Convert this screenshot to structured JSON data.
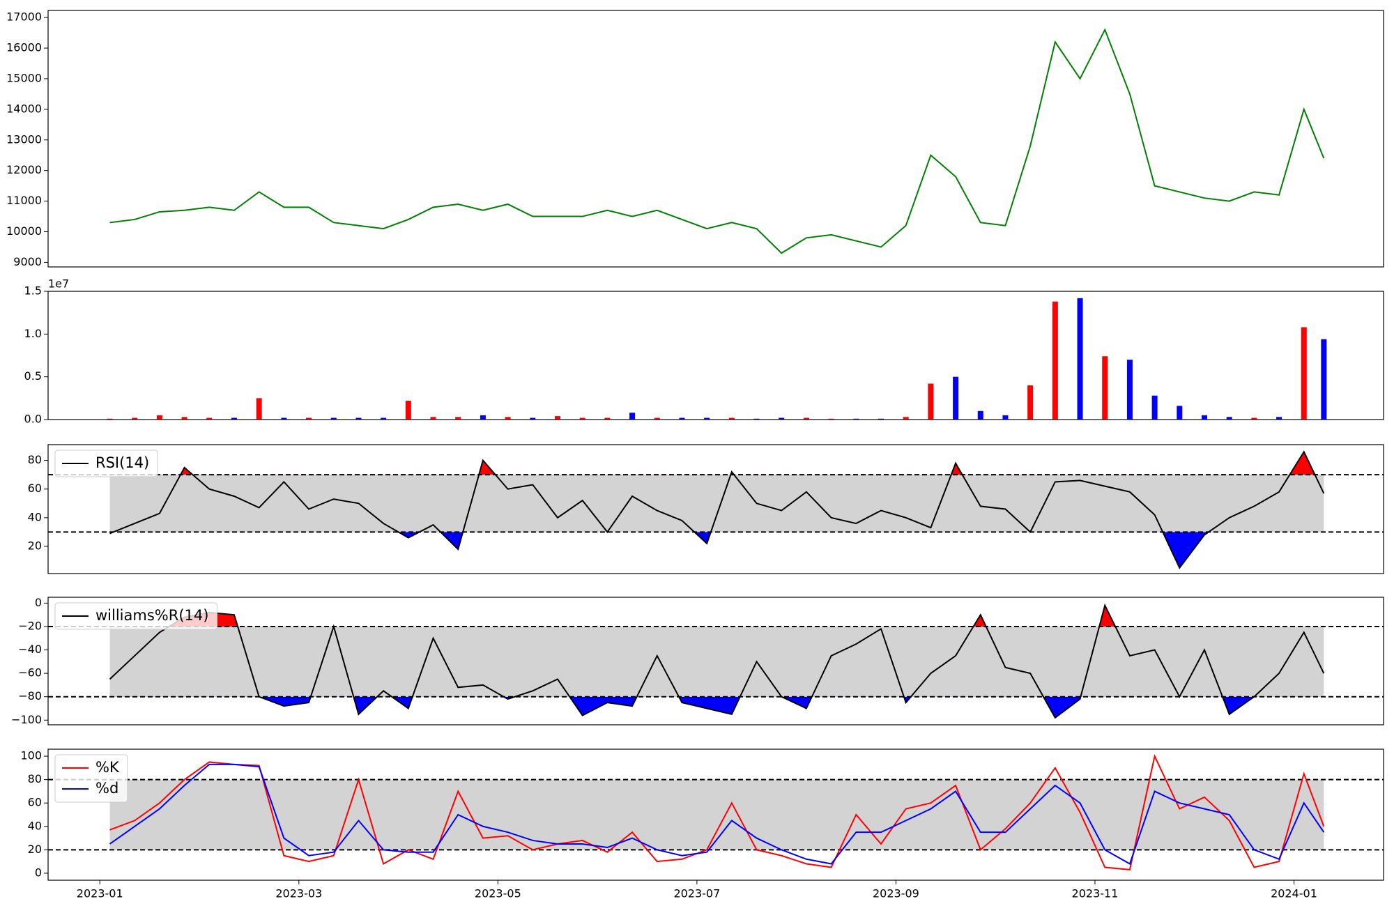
{
  "chart_data": [
    {
      "type": "line",
      "color": "#008000",
      "x": [
        0.1,
        0.35,
        0.6,
        0.85,
        1.1,
        1.35,
        1.6,
        1.85,
        2.1,
        2.35,
        2.6,
        2.85,
        3.1,
        3.35,
        3.6,
        3.85,
        4.1,
        4.35,
        4.6,
        4.85,
        5.1,
        5.35,
        5.6,
        5.85,
        6.1,
        6.35,
        6.6,
        6.85,
        7.1,
        7.35,
        7.6,
        7.85,
        8.1,
        8.35,
        8.6,
        8.85,
        9.1,
        9.35,
        9.6,
        9.85,
        10.1,
        10.35,
        10.6,
        10.85,
        11.1,
        11.35,
        11.6,
        11.85,
        12.1,
        12.3
      ],
      "values": [
        10300,
        10400,
        10650,
        10700,
        10800,
        10700,
        11300,
        10800,
        10800,
        10300,
        10200,
        10100,
        10400,
        10800,
        10900,
        10700,
        10900,
        10500,
        10500,
        10500,
        10700,
        10500,
        10700,
        10400,
        10100,
        10300,
        10100,
        9300,
        9800,
        9900,
        9700,
        9500,
        10200,
        12500,
        11800,
        10300,
        10200,
        12800,
        16200,
        15000,
        16600,
        14500,
        11500,
        11300,
        11100,
        11000,
        11300,
        11200,
        14000,
        12400
      ],
      "xlim": [
        -0.52,
        12.9
      ],
      "ylim": [
        8850,
        17230
      ],
      "yticks": [
        9000,
        10000,
        11000,
        12000,
        13000,
        14000,
        15000,
        16000,
        17000
      ]
    },
    {
      "type": "bar",
      "up_color": "#ff0000",
      "down_color": "#0000ff",
      "offset_text": "1e7",
      "x": [
        0.1,
        0.35,
        0.6,
        0.85,
        1.1,
        1.35,
        1.6,
        1.85,
        2.1,
        2.35,
        2.6,
        2.85,
        3.1,
        3.35,
        3.6,
        3.85,
        4.1,
        4.35,
        4.6,
        4.85,
        5.1,
        5.35,
        5.6,
        5.85,
        6.1,
        6.35,
        6.6,
        6.85,
        7.1,
        7.35,
        7.6,
        7.85,
        8.1,
        8.35,
        8.6,
        8.85,
        9.1,
        9.35,
        9.6,
        9.85,
        10.1,
        10.35,
        10.6,
        10.85,
        11.1,
        11.35,
        11.6,
        11.85,
        12.1,
        12.3
      ],
      "values": [
        0.01,
        0.02,
        0.05,
        0.03,
        0.02,
        0.02,
        0.25,
        0.02,
        0.02,
        0.02,
        0.02,
        0.02,
        0.22,
        0.03,
        0.03,
        0.05,
        0.03,
        0.02,
        0.04,
        0.02,
        0.02,
        0.08,
        0.02,
        0.02,
        0.02,
        0.02,
        0.01,
        0.02,
        0.02,
        0.01,
        0.01,
        0.01,
        0.03,
        0.42,
        0.5,
        0.1,
        0.05,
        0.4,
        1.38,
        1.42,
        0.74,
        0.7,
        0.28,
        0.16,
        0.05,
        0.03,
        0.02,
        0.03,
        1.08,
        0.94
      ],
      "xlim": [
        -0.52,
        12.9
      ],
      "ylim": [
        0,
        1.5
      ],
      "yticks": [
        {
          "value": 0,
          "label": "0.0"
        },
        0.5,
        {
          "value": 1,
          "label": "1.0"
        },
        1.5
      ]
    },
    {
      "type": "oscillator",
      "upper": 70,
      "lower": 30,
      "band_color": "#d3d3d3",
      "upper_fill": "#ff0000",
      "lower_fill": "#0000ff",
      "legend": "upper left",
      "x": [
        0.1,
        0.35,
        0.6,
        0.85,
        1.1,
        1.35,
        1.6,
        1.85,
        2.1,
        2.35,
        2.6,
        2.85,
        3.1,
        3.35,
        3.6,
        3.85,
        4.1,
        4.35,
        4.6,
        4.85,
        5.1,
        5.35,
        5.6,
        5.85,
        6.1,
        6.35,
        6.6,
        6.85,
        7.1,
        7.35,
        7.6,
        7.85,
        8.1,
        8.35,
        8.6,
        8.85,
        9.1,
        9.35,
        9.6,
        9.85,
        10.1,
        10.35,
        10.6,
        10.85,
        11.1,
        11.35,
        11.6,
        11.85,
        12.1,
        12.3
      ],
      "series": [
        {
          "name": "RSI(14)",
          "color": "#000000",
          "values": [
            29,
            36,
            43,
            75,
            60,
            55,
            47,
            65,
            46,
            53,
            50,
            36,
            26,
            35,
            18,
            80,
            60,
            63,
            40,
            52,
            30,
            55,
            45,
            38,
            22,
            72,
            50,
            45,
            58,
            40,
            36,
            45,
            40,
            33,
            78,
            48,
            46,
            30,
            65,
            66,
            62,
            58,
            42,
            5,
            28,
            40,
            48,
            58,
            86,
            57
          ]
        }
      ],
      "xlim": [
        -0.52,
        12.9
      ],
      "ylim": [
        1,
        91
      ],
      "yticks": [
        20,
        40,
        60,
        80
      ]
    },
    {
      "type": "oscillator",
      "upper": -20,
      "lower": -80,
      "band_color": "#d3d3d3",
      "upper_fill": "#ff0000",
      "lower_fill": "#0000ff",
      "legend": "upper left",
      "x": [
        0.1,
        0.35,
        0.6,
        0.85,
        1.1,
        1.35,
        1.6,
        1.85,
        2.1,
        2.35,
        2.6,
        2.85,
        3.1,
        3.35,
        3.6,
        3.85,
        4.1,
        4.35,
        4.6,
        4.85,
        5.1,
        5.35,
        5.6,
        5.85,
        6.1,
        6.35,
        6.6,
        6.85,
        7.1,
        7.35,
        7.6,
        7.85,
        8.1,
        8.35,
        8.6,
        8.85,
        9.1,
        9.35,
        9.6,
        9.85,
        10.1,
        10.35,
        10.6,
        10.85,
        11.1,
        11.35,
        11.6,
        11.85,
        12.1,
        12.3
      ],
      "series": [
        {
          "name": "williams%R(14)",
          "color": "#000000",
          "values": [
            -65,
            -45,
            -25,
            -12,
            -8,
            -10,
            -80,
            -88,
            -85,
            -20,
            -95,
            -75,
            -90,
            -30,
            -72,
            -70,
            -82,
            -75,
            -65,
            -96,
            -85,
            -88,
            -45,
            -85,
            -90,
            -95,
            -50,
            -80,
            -90,
            -45,
            -35,
            -22,
            -85,
            -60,
            -45,
            -10,
            -55,
            -60,
            -98,
            -82,
            -2,
            -45,
            -40,
            -80,
            -40,
            -95,
            -80,
            -60,
            -25,
            -60
          ]
        }
      ],
      "xlim": [
        -0.52,
        12.9
      ],
      "ylim": [
        -104,
        5
      ],
      "yticks": [
        0,
        {
          "value": -20,
          "label": "−20"
        },
        {
          "value": -40,
          "label": "−40"
        },
        {
          "value": -60,
          "label": "−60"
        },
        {
          "value": -80,
          "label": "−80"
        },
        {
          "value": -100,
          "label": "−100"
        }
      ]
    },
    {
      "type": "oscillator",
      "upper": 80,
      "lower": 20,
      "band_color": "#d3d3d3",
      "legend": "upper left",
      "x": [
        0.1,
        0.35,
        0.6,
        0.85,
        1.1,
        1.35,
        1.6,
        1.85,
        2.1,
        2.35,
        2.6,
        2.85,
        3.1,
        3.35,
        3.6,
        3.85,
        4.1,
        4.35,
        4.6,
        4.85,
        5.1,
        5.35,
        5.6,
        5.85,
        6.1,
        6.35,
        6.6,
        6.85,
        7.1,
        7.35,
        7.6,
        7.85,
        8.1,
        8.35,
        8.6,
        8.85,
        9.1,
        9.35,
        9.6,
        9.85,
        10.1,
        10.35,
        10.6,
        10.85,
        11.1,
        11.35,
        11.6,
        11.85,
        12.1,
        12.3
      ],
      "series": [
        {
          "name": "%K",
          "color": "#ff0000",
          "values": [
            37,
            45,
            60,
            80,
            95,
            93,
            92,
            15,
            10,
            15,
            80,
            8,
            20,
            12,
            70,
            30,
            32,
            20,
            25,
            28,
            18,
            35,
            10,
            12,
            20,
            60,
            20,
            15,
            8,
            5,
            50,
            25,
            55,
            60,
            75,
            20,
            38,
            60,
            90,
            52,
            5,
            3,
            100,
            55,
            65,
            45,
            5,
            10,
            85,
            40
          ]
        },
        {
          "name": "%d",
          "color": "#0000ff",
          "values": [
            25,
            40,
            55,
            75,
            93,
            93,
            91,
            30,
            15,
            18,
            45,
            20,
            18,
            18,
            50,
            40,
            35,
            28,
            25,
            25,
            22,
            30,
            20,
            15,
            18,
            45,
            30,
            20,
            12,
            8,
            35,
            35,
            45,
            55,
            70,
            35,
            35,
            55,
            75,
            60,
            20,
            8,
            70,
            60,
            55,
            50,
            20,
            12,
            60,
            35
          ]
        }
      ],
      "xlim": [
        -0.52,
        12.9
      ],
      "ylim": [
        -6,
        106
      ],
      "yticks": [
        0,
        20,
        40,
        60,
        80,
        100
      ],
      "xticks": [
        {
          "value": 0,
          "label": "2023-01"
        },
        {
          "value": 2,
          "label": "2023-03"
        },
        {
          "value": 4,
          "label": "2023-05"
        },
        {
          "value": 6,
          "label": "2023-07"
        },
        {
          "value": 8,
          "label": "2023-09"
        },
        {
          "value": 10,
          "label": "2023-11"
        },
        {
          "value": 12,
          "label": "2024-01"
        }
      ]
    }
  ]
}
